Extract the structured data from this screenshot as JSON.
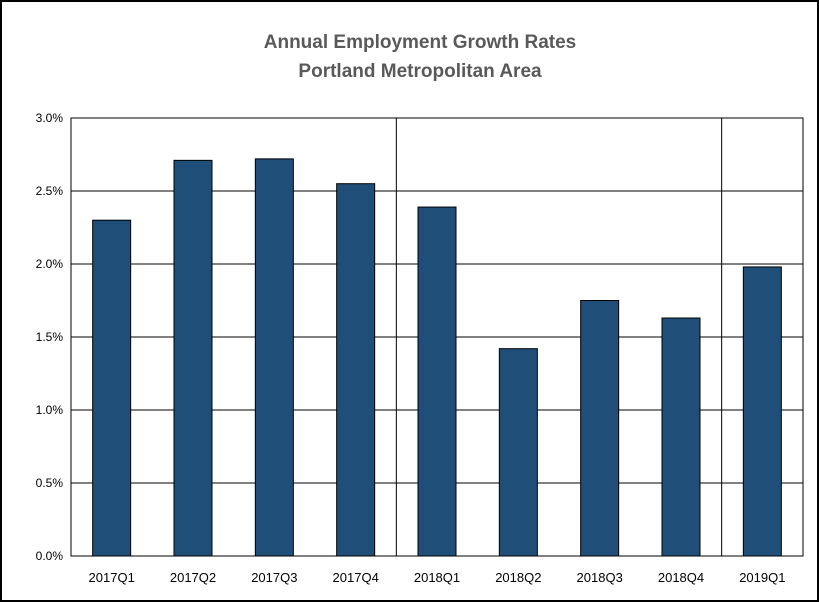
{
  "chart_data": {
    "type": "bar",
    "title": "Annual Employment Growth Rates",
    "subtitle": "Portland Metropolitan Area",
    "xlabel": "",
    "ylabel": "",
    "categories": [
      "2017Q1",
      "2017Q2",
      "2017Q3",
      "2017Q4",
      "2018Q1",
      "2018Q2",
      "2018Q3",
      "2018Q4",
      "2019Q1"
    ],
    "values": [
      2.3,
      2.71,
      2.72,
      2.55,
      2.39,
      1.42,
      1.75,
      1.63,
      1.98
    ],
    "value_unit": "%",
    "ylim": [
      0,
      3.0
    ],
    "yticks": [
      0.0,
      0.5,
      1.0,
      1.5,
      2.0,
      2.5,
      3.0
    ],
    "ytick_labels": [
      "0.0%",
      "0.5%",
      "1.0%",
      "1.5%",
      "2.0%",
      "2.5%",
      "3.0%"
    ],
    "year_dividers_after": [
      "2017Q4",
      "2018Q4"
    ],
    "grid": true,
    "legend": "none",
    "bar_color": "#1f4e79"
  }
}
